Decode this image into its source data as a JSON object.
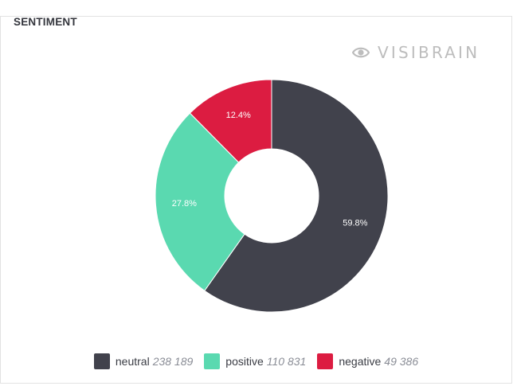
{
  "title": "SENTIMENT",
  "logo": {
    "text": "VISIBRAIN",
    "icon": "eye-icon"
  },
  "chart_data": {
    "type": "pie",
    "variant": "donut",
    "title": "SENTIMENT",
    "series": [
      {
        "name": "neutral",
        "value": 238189,
        "display": "238 189",
        "percent": "59.8%",
        "color": "#41424c"
      },
      {
        "name": "positive",
        "value": 110831,
        "display": "110 831",
        "percent": "27.8%",
        "color": "#5ad9b0"
      },
      {
        "name": "negative",
        "value": 49386,
        "display": "49 386",
        "percent": "12.4%",
        "color": "#dc1c41"
      }
    ],
    "legend_position": "bottom-center"
  }
}
